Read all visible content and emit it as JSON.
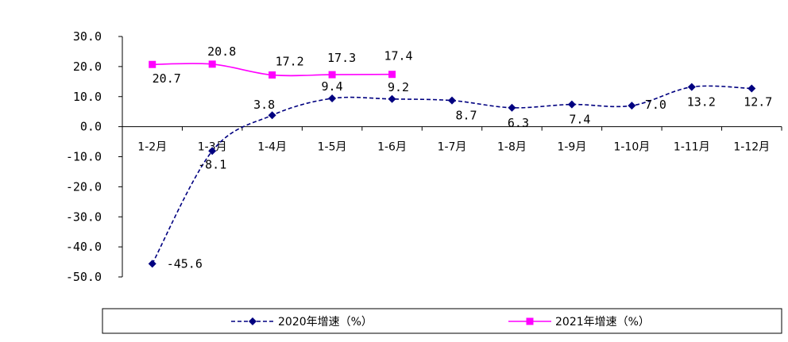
{
  "chart_data": {
    "type": "line",
    "categories": [
      "1-2月",
      "1-3月",
      "1-4月",
      "1-5月",
      "1-6月",
      "1-7月",
      "1-8月",
      "1-9月",
      "1-10月",
      "1-11月",
      "1-12月"
    ],
    "ylim": [
      -50,
      30
    ],
    "yticks": [
      30,
      20,
      10,
      0,
      -10,
      -20,
      -30,
      -40,
      -50
    ],
    "ytick_labels": [
      "30.0",
      "20.0",
      "10.0",
      "0.0",
      "-10.0",
      "-20.0",
      "-30.0",
      "-40.0",
      "-50.0"
    ],
    "legend_position": "bottom",
    "series": [
      {
        "name": "2020年增速（%）",
        "color": "#000080",
        "line_style": "dashed",
        "marker": "diamond",
        "values": [
          -45.6,
          -8.1,
          3.8,
          9.4,
          9.2,
          8.7,
          6.3,
          7.4,
          7.0,
          13.2,
          12.7
        ],
        "value_labels": [
          "-45.6",
          "-8.1",
          "3.8",
          "9.4",
          "9.2",
          "8.7",
          "6.3",
          "7.4",
          "7.0",
          "13.2",
          "12.7"
        ]
      },
      {
        "name": "2021年增速（%）",
        "color": "#FF00FF",
        "line_style": "solid",
        "marker": "square",
        "values": [
          20.7,
          20.8,
          17.2,
          17.3,
          17.4,
          null,
          null,
          null,
          null,
          null,
          null
        ],
        "value_labels": [
          "20.7",
          "20.8",
          "17.2",
          "17.3",
          "17.4",
          "",
          "",
          "",
          "",
          "",
          ""
        ]
      }
    ]
  }
}
